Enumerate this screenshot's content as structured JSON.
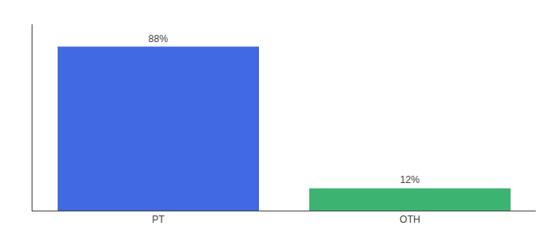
{
  "chart_data": {
    "type": "bar",
    "categories": [
      "PT",
      "OTH"
    ],
    "values": [
      88,
      12
    ],
    "value_labels": [
      "88%",
      "12%"
    ],
    "data_labels": true,
    "colors": [
      "#4169E1",
      "#3CB371"
    ],
    "ylim": [
      0,
      100
    ],
    "yticks": [],
    "grid": false,
    "tick_labels": "x"
  }
}
